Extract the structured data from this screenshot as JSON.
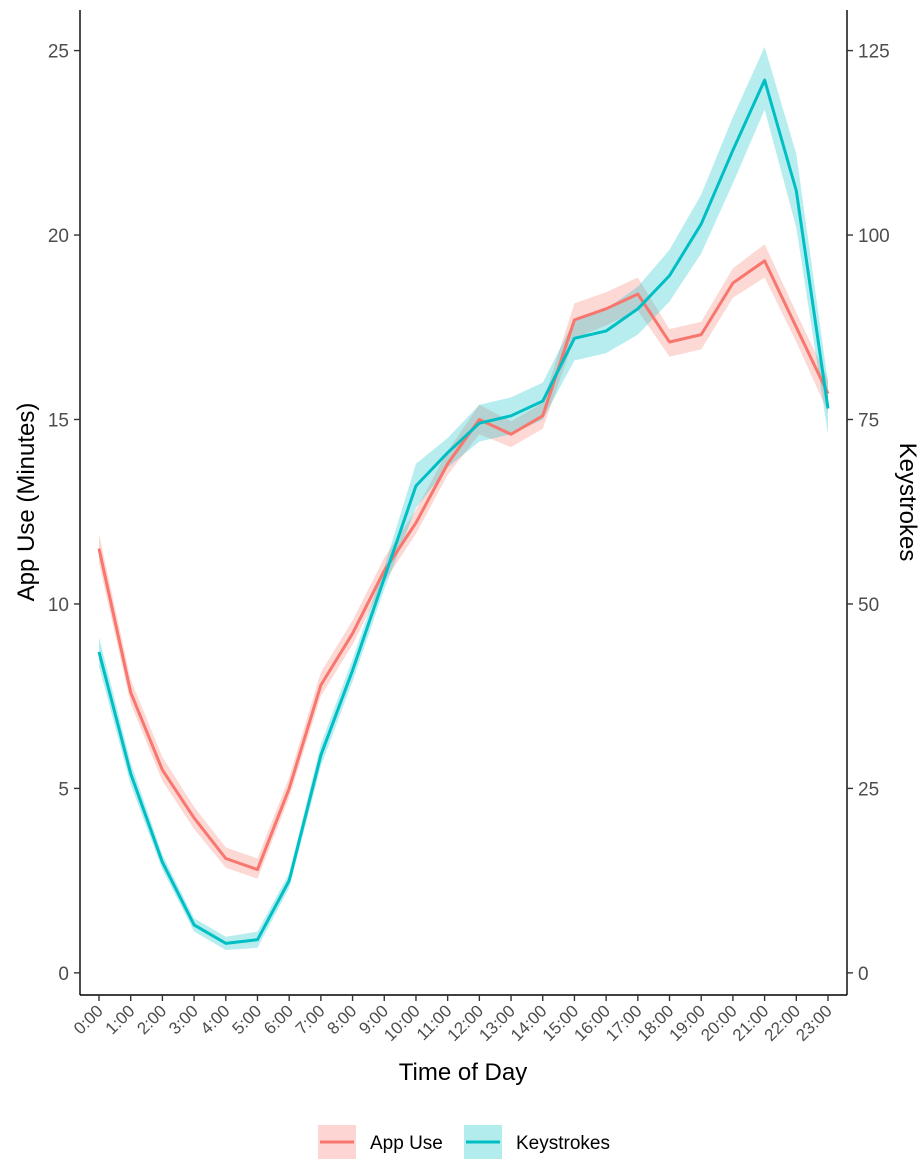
{
  "chart_data": {
    "type": "line",
    "title": "",
    "xlabel": "Time of Day",
    "ylabel": "App Use (Minutes)",
    "y2label": "Keystrokes",
    "categories": [
      "0:00",
      "1:00",
      "2:00",
      "3:00",
      "4:00",
      "5:00",
      "6:00",
      "7:00",
      "8:00",
      "9:00",
      "10:00",
      "11:00",
      "12:00",
      "13:00",
      "14:00",
      "15:00",
      "16:00",
      "17:00",
      "18:00",
      "19:00",
      "20:00",
      "21:00",
      "22:00",
      "23:00"
    ],
    "ylim": [
      -0.6,
      26.1
    ],
    "y2lim": [
      -3,
      130.5
    ],
    "yticks": [
      0,
      5,
      10,
      15,
      20,
      25
    ],
    "y2ticks": [
      0,
      25,
      50,
      75,
      100,
      125
    ],
    "grid": false,
    "legend_position": "bottom",
    "series": [
      {
        "name": "App Use",
        "axis": "left",
        "color": "#F8766D",
        "band_color": "#F8766D",
        "values": [
          11.5,
          7.6,
          5.5,
          4.2,
          3.1,
          2.8,
          5.0,
          7.8,
          9.2,
          10.9,
          12.2,
          13.8,
          15.0,
          14.6,
          15.1,
          17.7,
          18.0,
          18.4,
          17.1,
          17.3,
          18.7,
          19.3,
          17.5,
          15.7
        ],
        "lower": [
          11.1,
          7.3,
          5.2,
          3.9,
          2.85,
          2.55,
          4.75,
          7.5,
          8.9,
          10.6,
          11.9,
          13.5,
          14.6,
          14.25,
          14.75,
          17.2,
          17.55,
          17.95,
          16.7,
          16.9,
          18.3,
          18.85,
          17.1,
          15.2
        ],
        "upper": [
          11.9,
          7.95,
          5.85,
          4.5,
          3.4,
          3.1,
          5.3,
          8.15,
          9.55,
          11.25,
          12.55,
          14.15,
          15.4,
          14.95,
          15.45,
          18.15,
          18.45,
          18.85,
          17.45,
          17.65,
          19.1,
          19.75,
          17.9,
          16.1
        ]
      },
      {
        "name": "Keystrokes",
        "axis": "right",
        "color": "#00BFC4",
        "band_color": "#00BFC4",
        "values": [
          43.5,
          27,
          15,
          6.5,
          4,
          4.5,
          12.5,
          29.5,
          41,
          53.5,
          66,
          70.5,
          74.5,
          75.5,
          77.5,
          86,
          87,
          90,
          94.5,
          101.5,
          111.5,
          121,
          106,
          76.5
        ],
        "lower": [
          41.5,
          25.5,
          14,
          5.6,
          3.1,
          3.4,
          11.5,
          28,
          39.5,
          52,
          63,
          68.5,
          72,
          73,
          75,
          83,
          84,
          86.5,
          91,
          97.5,
          107,
          117,
          101,
          73
        ],
        "upper": [
          45.5,
          28.5,
          16,
          7.4,
          4.9,
          5.6,
          13.5,
          31,
          42.5,
          55,
          69,
          72.5,
          77,
          78,
          80,
          88.5,
          90,
          93,
          98,
          105.5,
          116,
          125.5,
          111,
          80
        ]
      }
    ]
  }
}
